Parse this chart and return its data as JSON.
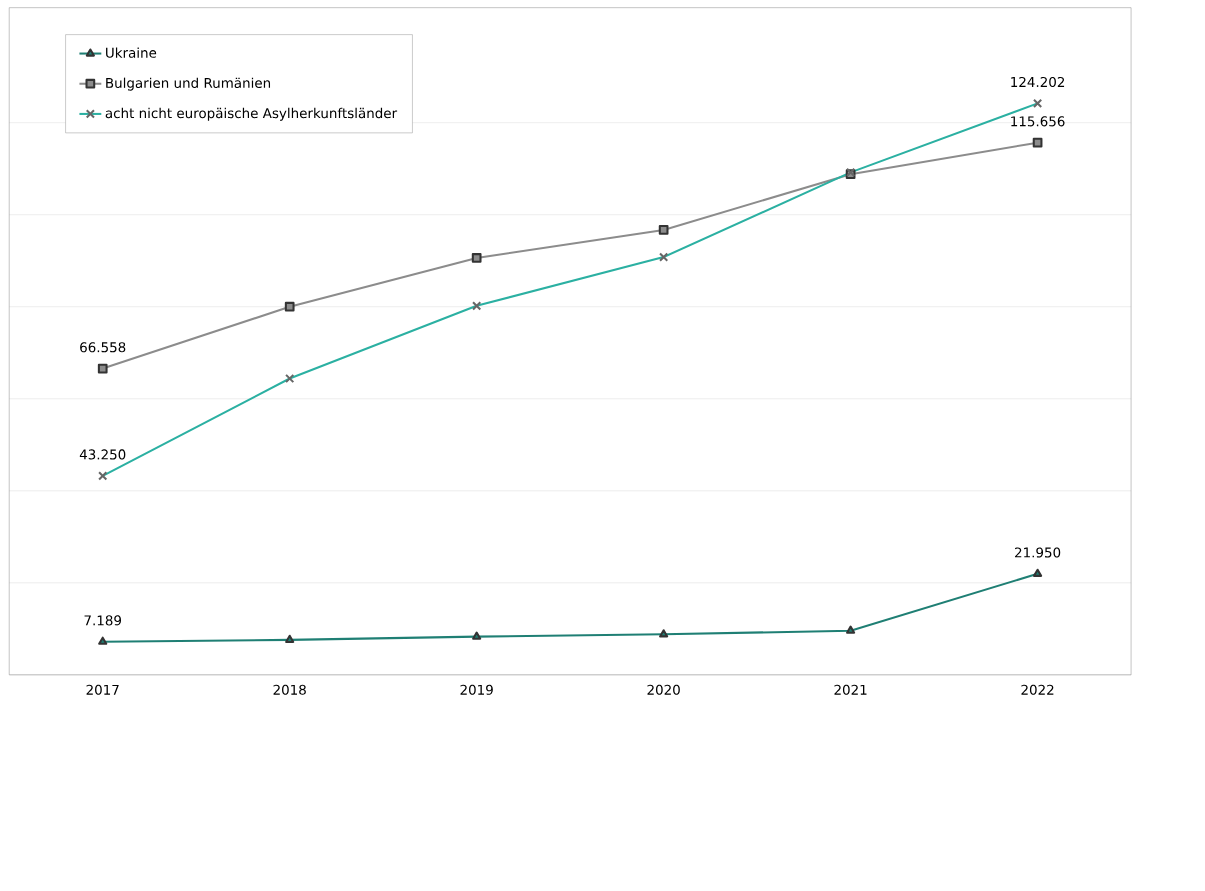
{
  "chart_data": {
    "type": "line",
    "categories": [
      "2017",
      "2018",
      "2019",
      "2020",
      "2021",
      "2022"
    ],
    "ylim": [
      0,
      145000
    ],
    "yticks": [
      {
        "value": 0,
        "label": null
      },
      {
        "value": 20000,
        "label": null
      },
      {
        "value": 40000,
        "label": null
      },
      {
        "value": 60000,
        "label": null
      },
      {
        "value": 80000,
        "label": null
      },
      {
        "value": 100000,
        "label": null
      },
      {
        "value": 120000,
        "label": null
      }
    ],
    "grid": "y",
    "legend": "top left",
    "line_style": "solid",
    "series": [
      {
        "name": "Ukraine",
        "color": "#1f7f74",
        "marker": "triangle",
        "values": [
          7189,
          7600,
          8300,
          8800,
          9600,
          21950
        ],
        "value_labels": [
          "7.189",
          null,
          null,
          null,
          null,
          "21.950"
        ]
      },
      {
        "name": "Bulgarien und Rumänien",
        "color": "#8c8c8c",
        "marker": "square",
        "values": [
          66558,
          80000,
          90600,
          96700,
          108800,
          115656
        ],
        "value_labels": [
          "66.558",
          null,
          null,
          null,
          null,
          "115.656"
        ]
      },
      {
        "name": "acht nicht europäische Asylherkunftsländer",
        "color": "#2bb0a2",
        "marker": "cross",
        "values": [
          43250,
          64400,
          80200,
          90800,
          109200,
          124202
        ],
        "value_labels": [
          "43.250",
          null,
          null,
          null,
          null,
          "124.202"
        ]
      }
    ]
  }
}
